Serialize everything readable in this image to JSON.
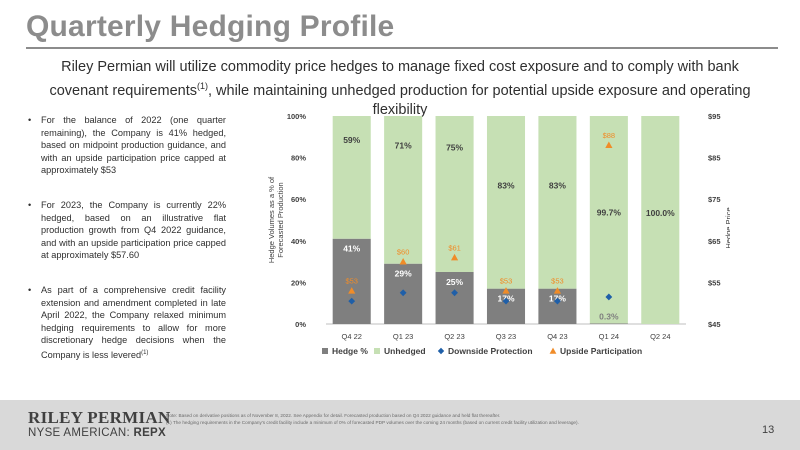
{
  "header": {
    "title": "Quarterly Hedging Profile",
    "subtitle_main": "Riley Permian will utilize commodity price hedges to manage fixed cost exposure and to comply with bank covenant requirements",
    "subtitle_ref": "(1)",
    "subtitle_end": ", while maintaining unhedged production for potential upside exposure and operating flexibility"
  },
  "bullets": [
    {
      "text": "For the balance of 2022 (one quarter remaining), the Company is 41% hedged, based on midpoint production guidance, and with an upside participation price capped at approximately $53"
    },
    {
      "text": "For 2023, the Company is currently 22% hedged, based on an illustrative flat production growth from Q4 2022 guidance, and with an upside participation price capped at approximately $57.60"
    },
    {
      "text": "As part of a comprehensive credit facility extension and amendment completed in late April 2022, the Company relaxed minimum hedging requirements to allow for more discretionary hedge decisions when the Company is less levered",
      "ref": "(1)"
    }
  ],
  "chart_data": {
    "type": "bar",
    "stacked": true,
    "categories": [
      "Q4 22",
      "Q1 23",
      "Q2 23",
      "Q3 23",
      "Q4 23",
      "Q1 24",
      "Q2 24"
    ],
    "series": [
      {
        "name": "Hedge %",
        "values": [
          41,
          29,
          25,
          17,
          17,
          0.3,
          0
        ],
        "labels": [
          "41%",
          "29%",
          "25%",
          "17%",
          "17%",
          "0.3%",
          ""
        ],
        "color": "#7f7f7f"
      },
      {
        "name": "Unhedged",
        "values": [
          59,
          71,
          75,
          83,
          83,
          99.7,
          100
        ],
        "labels": [
          "59%",
          "71%",
          "75%",
          "83%",
          "83%",
          "99.7%",
          "100.0%"
        ],
        "color": "#c6e0b4"
      },
      {
        "name": "Downside Protection",
        "axis": "right",
        "values": [
          50.5,
          52.5,
          52.5,
          50.5,
          50.5,
          51.5,
          null
        ],
        "labels": [
          "",
          "",
          "",
          "",
          "",
          "",
          ""
        ],
        "color": "#1f5fa8"
      },
      {
        "name": "Upside Participation",
        "axis": "right",
        "values": [
          53,
          60,
          61,
          53,
          53,
          88,
          null
        ],
        "labels": [
          "$53",
          "$60",
          "$61",
          "$53",
          "$53",
          "$88",
          ""
        ],
        "color": "#f08c28"
      }
    ],
    "ylabel_left": "Hedge Volumes as a % of Forecasted Production",
    "ylabel_right": "Hedge Price",
    "ylim_left": [
      0,
      100
    ],
    "ylim_right": [
      45,
      95
    ],
    "yticks_left": [
      "0%",
      "20%",
      "40%",
      "60%",
      "80%",
      "100%"
    ],
    "yticks_right": [
      "$45",
      "$55",
      "$65",
      "$75",
      "$85",
      "$95"
    ],
    "legend_position": "bottom",
    "grid": false
  },
  "footer": {
    "brand_name": "RILEY PERMIAN",
    "exchange": "NYSE AMERICAN:",
    "ticker": "REPX",
    "note_1": "Note: Based on derivative positions as of November 8, 2022. See Appendix for detail. Forecasted production based on Q4 2022 guidance and held flat thereafter.",
    "note_2": "(1) The hedging requirements in the Company's credit facility include a minimum of 0% of forecasted PDP volumes over the coming 24 months (based on current credit facility utilization and leverage).",
    "page_number": "13"
  },
  "colors": {
    "title": "#8c8c8c",
    "hedge": "#7f7f7f",
    "unhedged": "#c6e0b4",
    "downside": "#1f5fa8",
    "upside": "#f08c28",
    "footer_bg": "#d9d9d9"
  }
}
